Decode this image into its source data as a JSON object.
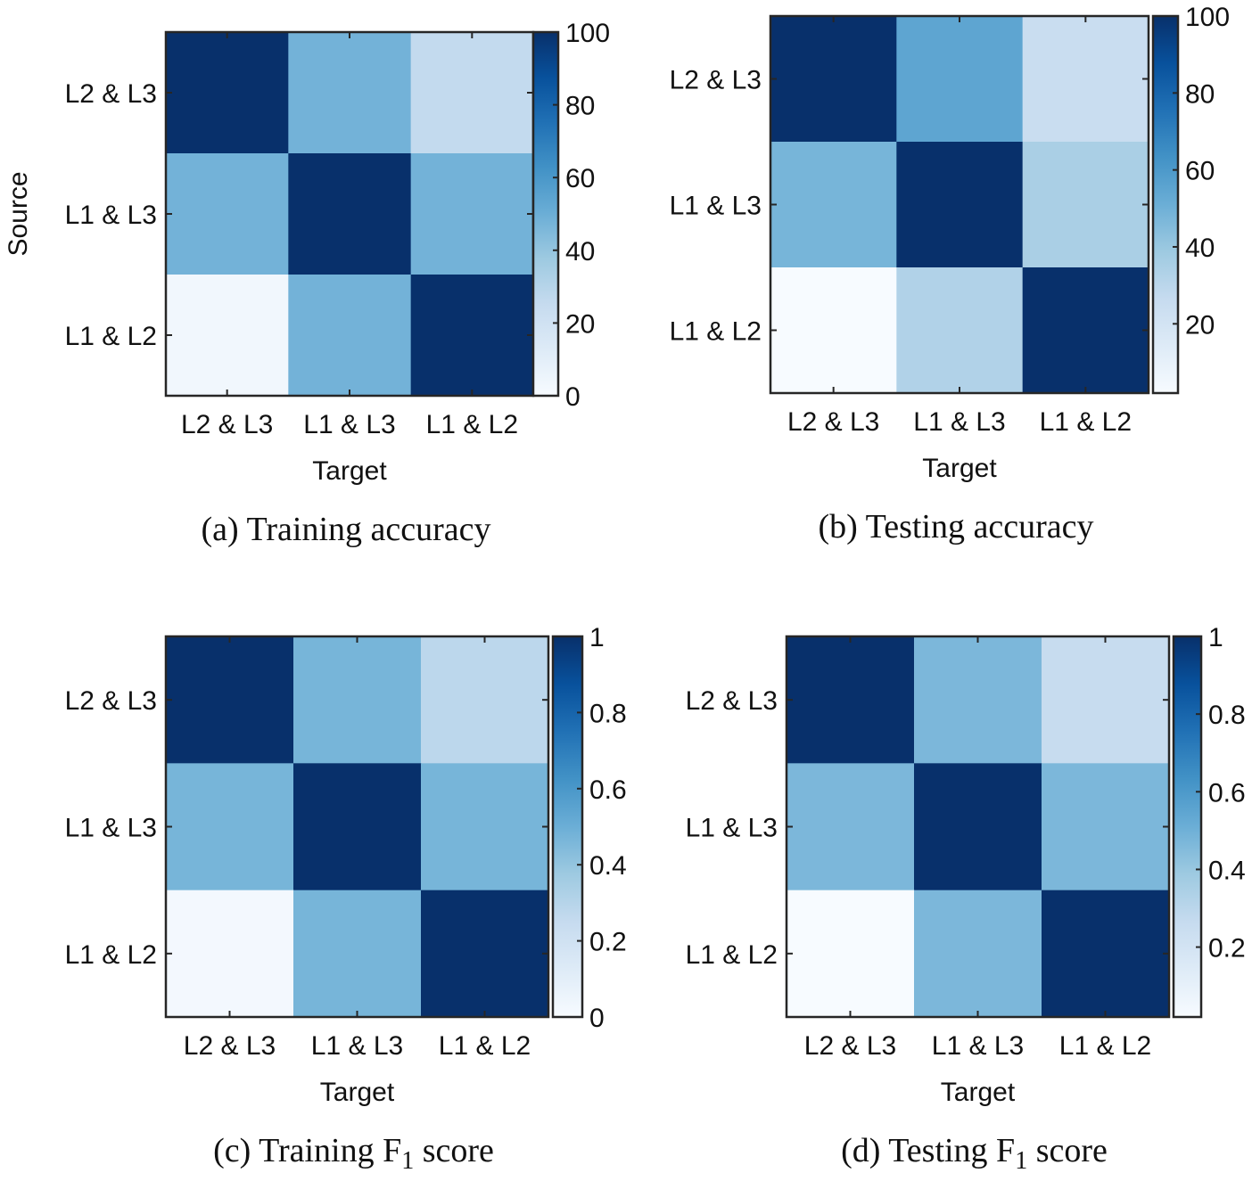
{
  "chart_data": [
    {
      "type": "heatmap",
      "caption": "(a) Training accuracy",
      "rows": [
        "L2 & L3",
        "L1 & L3",
        "L1 & L2"
      ],
      "columns": [
        "L2 & L3",
        "L1 & L3",
        "L1 & L2"
      ],
      "values": [
        [
          100,
          48,
          26
        ],
        [
          48,
          100,
          48
        ],
        [
          3,
          48,
          100
        ]
      ],
      "xlabel": "Target",
      "ylabel": "Source",
      "colorbar": {
        "min": 0,
        "max": 100,
        "ticks": [
          "0",
          "20",
          "40",
          "60",
          "80",
          "100"
        ]
      }
    },
    {
      "type": "heatmap",
      "caption": "(b) Testing accuracy",
      "rows": [
        "L2 & L3",
        "L1 & L3",
        "L1 & L2"
      ],
      "columns": [
        "L2 & L3",
        "L1 & L3",
        "L1 & L2"
      ],
      "values": [
        [
          100,
          55,
          25
        ],
        [
          48,
          100,
          35
        ],
        [
          2,
          33,
          100
        ]
      ],
      "xlabel": "Target",
      "ylabel": "",
      "colorbar": {
        "min": 2,
        "max": 100,
        "ticks": [
          "20",
          "40",
          "60",
          "80",
          "100"
        ]
      }
    },
    {
      "type": "heatmap",
      "caption": "(c) Training F",
      "caption_sub": "1",
      "caption_tail": " score",
      "rows": [
        "L2 & L3",
        "L1 & L3",
        "L1 & L2"
      ],
      "columns": [
        "L2 & L3",
        "L1 & L3",
        "L1 & L2"
      ],
      "values": [
        [
          1.0,
          0.47,
          0.28
        ],
        [
          0.47,
          1.0,
          0.47
        ],
        [
          0.02,
          0.47,
          1.0
        ]
      ],
      "xlabel": "Target",
      "ylabel": "",
      "colorbar": {
        "min": 0,
        "max": 1,
        "ticks": [
          "0",
          "0.2",
          "0.4",
          "0.6",
          "0.8",
          "1"
        ]
      }
    },
    {
      "type": "heatmap",
      "caption": "(d) Testing F",
      "caption_sub": "1",
      "caption_tail": " score",
      "rows": [
        "L2 & L3",
        "L1 & L3",
        "L1 & L2"
      ],
      "columns": [
        "L2 & L3",
        "L1 & L3",
        "L1 & L2"
      ],
      "values": [
        [
          1.0,
          0.47,
          0.26
        ],
        [
          0.47,
          1.0,
          0.47
        ],
        [
          0.02,
          0.47,
          1.0
        ]
      ],
      "xlabel": "Target",
      "ylabel": "",
      "colorbar": {
        "min": 0.02,
        "max": 1,
        "ticks": [
          "0.2",
          "0.4",
          "0.6",
          "0.8",
          "1"
        ]
      }
    }
  ],
  "colormap": [
    "#f7fbff",
    "#deebf7",
    "#c6dbef",
    "#9ecae1",
    "#6baed6",
    "#4292c6",
    "#2171b5",
    "#08519c",
    "#08306b"
  ]
}
